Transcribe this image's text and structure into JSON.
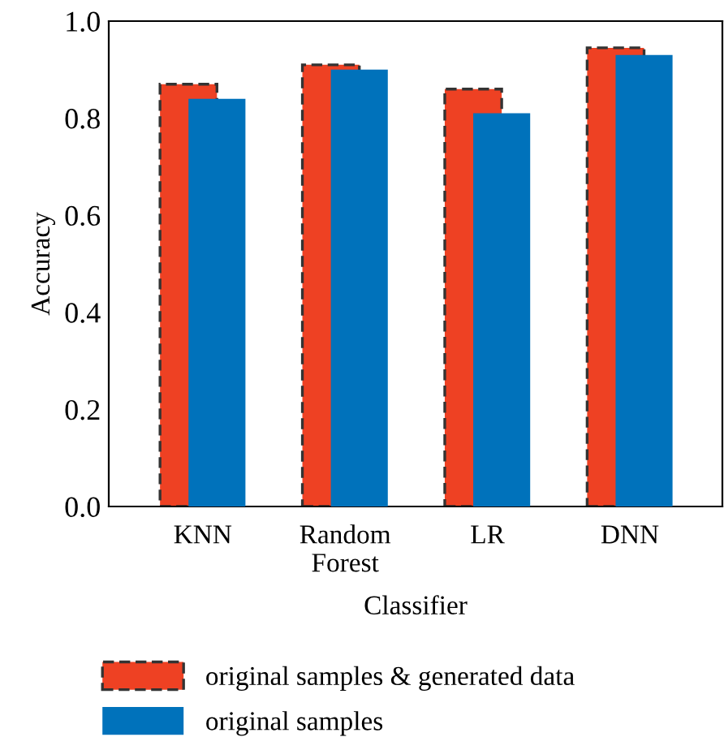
{
  "chart_data": {
    "type": "bar",
    "xlabel": "Classifier",
    "ylabel": "Accuracy",
    "categories": [
      "KNN",
      "Random\nForest",
      "LR",
      "DNN"
    ],
    "series": [
      {
        "name": "original samples & generated data",
        "color": "#ee4123",
        "line_style": "dashed",
        "values": [
          0.87,
          0.91,
          0.86,
          0.945
        ]
      },
      {
        "name": "original samples",
        "color": "#0072bb",
        "values": [
          0.84,
          0.9,
          0.81,
          0.93
        ]
      }
    ],
    "ylim": [
      0,
      1.0
    ],
    "yticks": [
      {
        "value": 0,
        "label": "0.0"
      },
      0.2,
      0.4,
      0.6,
      0.8,
      {
        "value": 1.0,
        "label": "1.0"
      }
    ],
    "grid": false,
    "legend": "bottom"
  }
}
